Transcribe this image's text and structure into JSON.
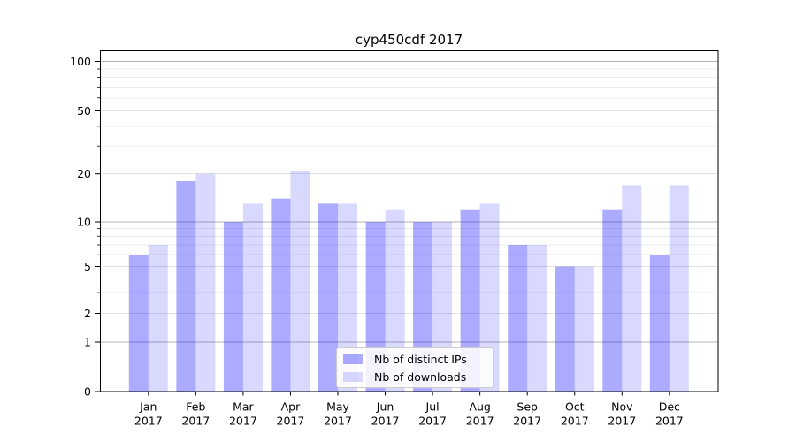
{
  "chart_data": {
    "type": "bar",
    "title": "cyp450cdf 2017",
    "categories": [
      "Jan",
      "Feb",
      "Mar",
      "Apr",
      "May",
      "Jun",
      "Jul",
      "Aug",
      "Sep",
      "Oct",
      "Nov",
      "Dec"
    ],
    "year": "2017",
    "series": [
      {
        "name": "Nb of distinct IPs",
        "base_color": "#0000ff",
        "alpha": 0.33,
        "rendered_color": "#aaaaff",
        "values": [
          6,
          18,
          10,
          14,
          13,
          10,
          10,
          12,
          7,
          5,
          12,
          6
        ]
      },
      {
        "name": "Nb of downloads",
        "base_color": "#0000ff",
        "alpha": 0.15,
        "rendered_color": "#d9d9ff",
        "values": [
          7,
          20,
          13,
          21,
          13,
          12,
          10,
          13,
          7,
          5,
          17,
          17
        ]
      }
    ],
    "xlabel": "",
    "ylabel": "",
    "yscale": "log-like (0,1,2,5,10,20,50,100)",
    "yticks": [
      0,
      1,
      2,
      5,
      10,
      20,
      50,
      100
    ],
    "yticks_minor": [
      3,
      4,
      6,
      7,
      8,
      9,
      30,
      40,
      60,
      70,
      80,
      90
    ],
    "ylim": [
      0,
      110
    ],
    "grid": true,
    "legend_position": "lower center"
  }
}
